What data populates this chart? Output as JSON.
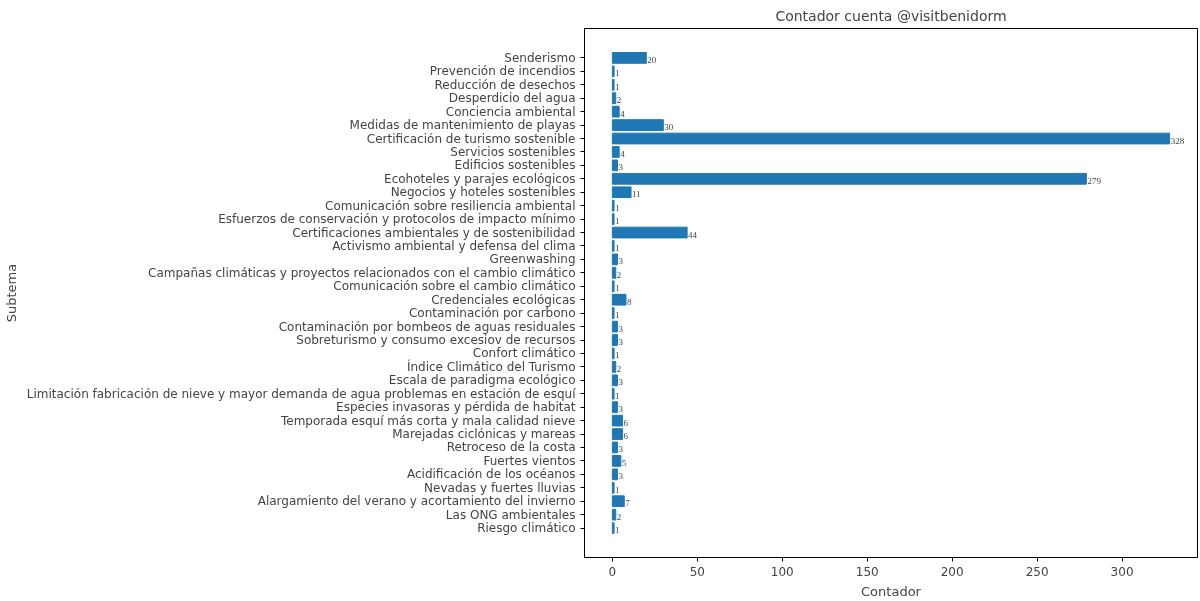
{
  "chart_data": {
    "type": "bar",
    "orientation": "horizontal",
    "title": "Contador cuenta @visitbenidorm",
    "xlabel": "Contador",
    "ylabel": "Subtema",
    "categories": [
      "Senderismo",
      "Prevención de incendios",
      "Reducción de desechos",
      "Desperdicio del agua",
      "Conciencia ambiental",
      "Medidas de mantenimiento de playas",
      "Certificación de turismo sostenible",
      "Servicios sostenibles",
      "Edificios sostenibles",
      "Ecohoteles y parajes ecológicos",
      "Negocios y hoteles sostenibles",
      "Comunicación sobre resiliencia ambiental",
      "Esfuerzos de conservación y protocolos de impacto mínimo",
      "Certificaciones ambientales y de sostenibilidad",
      "Activismo ambiental y defensa del clima",
      "Greenwashing",
      "Campañas climáticas y proyectos relacionados con el cambio climático",
      "Comunicación sobre el cambio climático",
      "Credenciales ecológicas",
      "Contaminación por carbono",
      "Contaminación por bombeos de aguas residuales",
      "Sobreturismo y consumo excesiov de recursos",
      "Confort climático",
      "Índice Climático del Turismo",
      "Escala de paradigma ecológico",
      "Limitación fabricación de nieve y mayor demanda de agua problemas en estación de esquí",
      "Especies invasoras y pérdida de habitat",
      "Temporada esquí más corta y mala calidad nieve",
      "Marejadas ciclónicas y mareas",
      "Retroceso de la costa",
      "Fuertes vientos",
      "Acidificación de los océanos",
      "Nevadas y fuertes lluvias",
      "Alargamiento del verano y acortamiento del invierno",
      "Las ONG ambientales",
      "Riesgo climático"
    ],
    "values": [
      20,
      1,
      1,
      2,
      4,
      30,
      328,
      4,
      3,
      279,
      11,
      1,
      1,
      44,
      1,
      3,
      2,
      1,
      8,
      1,
      3,
      3,
      1,
      2,
      3,
      1,
      3,
      6,
      6,
      3,
      5,
      3,
      1,
      7,
      2,
      1
    ],
    "color": "#1f77b4",
    "xlim": [
      -16.4,
      344.4
    ],
    "xticks": [
      0,
      50,
      100,
      150,
      200,
      250,
      300
    ],
    "data_labels": true
  }
}
